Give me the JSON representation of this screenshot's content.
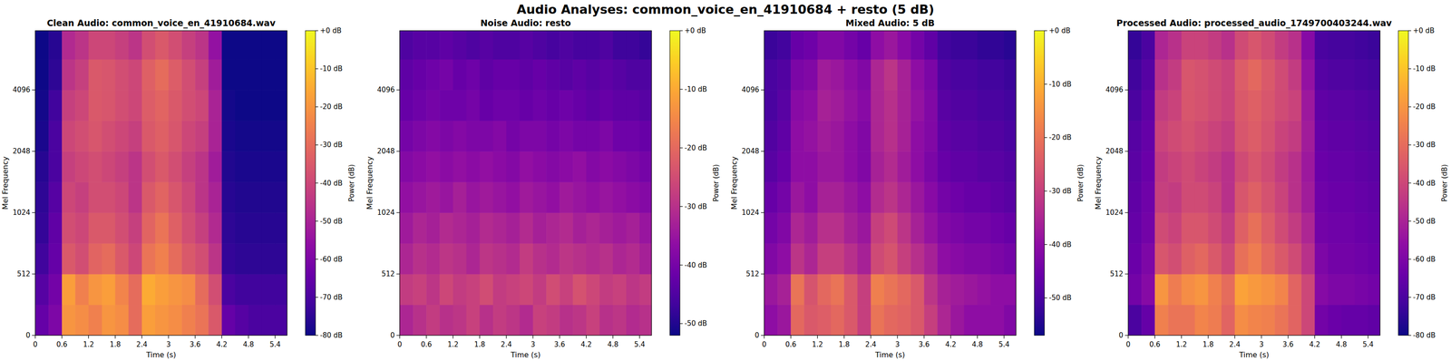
{
  "suptitle": "Audio Analyses: common_voice_en_41910684 + resto (5 dB)",
  "chart_data": [
    {
      "type": "heatmap",
      "title": "Clean Audio: common_voice_en_41910684.wav",
      "x_label": "Time (s)",
      "y_label": "Mel Frequency",
      "xlim": [
        0,
        5.67
      ],
      "xticks": [
        0,
        0.6,
        1.2,
        1.8,
        2.4,
        3,
        3.6,
        4.2,
        4.8,
        5.4
      ],
      "ylim": [
        0,
        8000
      ],
      "yticks": [
        0,
        512,
        1024,
        2048,
        4096
      ],
      "x_bins": [
        0,
        0.3,
        0.6,
        0.9,
        1.2,
        1.5,
        1.8,
        2.1,
        2.4,
        2.7,
        3.0,
        3.3,
        3.6,
        3.9,
        4.2,
        4.5,
        4.8,
        5.1,
        5.4,
        5.67
      ],
      "y_bins": [
        0,
        256,
        512,
        768,
        1024,
        1448,
        2048,
        2896,
        4096,
        5793,
        8000
      ],
      "cells": [
        [
          -65,
          -60,
          -20,
          -22,
          -25,
          -20,
          -22,
          -30,
          -18,
          -20,
          -22,
          -25,
          -28,
          -35,
          -65,
          -68,
          -70,
          -70,
          -70
        ],
        [
          -68,
          -62,
          -18,
          -25,
          -20,
          -18,
          -24,
          -30,
          -15,
          -18,
          -20,
          -22,
          -30,
          -38,
          -70,
          -72,
          -72,
          -72,
          -72
        ],
        [
          -72,
          -65,
          -35,
          -38,
          -32,
          -30,
          -35,
          -40,
          -28,
          -25,
          -30,
          -35,
          -38,
          -45,
          -74,
          -75,
          -75,
          -75,
          -75
        ],
        [
          -74,
          -66,
          -38,
          -40,
          -35,
          -35,
          -38,
          -42,
          -32,
          -28,
          -33,
          -38,
          -42,
          -48,
          -75,
          -76,
          -76,
          -76,
          -76
        ],
        [
          -75,
          -68,
          -40,
          -42,
          -38,
          -38,
          -40,
          -45,
          -35,
          -32,
          -36,
          -40,
          -45,
          -50,
          -76,
          -77,
          -77,
          -77,
          -77
        ],
        [
          -76,
          -70,
          -42,
          -40,
          -38,
          -40,
          -42,
          -45,
          -38,
          -35,
          -38,
          -42,
          -45,
          -52,
          -77,
          -78,
          -78,
          -78,
          -78
        ],
        [
          -78,
          -70,
          -40,
          -38,
          -36,
          -38,
          -40,
          -42,
          -35,
          -33,
          -36,
          -40,
          -42,
          -50,
          -78,
          -79,
          -79,
          -79,
          -79
        ],
        [
          -79,
          -72,
          -42,
          -40,
          -35,
          -36,
          -38,
          -40,
          -34,
          -32,
          -35,
          -38,
          -40,
          -50,
          -79,
          -80,
          -80,
          -80,
          -80
        ],
        [
          -80,
          -75,
          -45,
          -42,
          -35,
          -36,
          -38,
          -40,
          -33,
          -30,
          -34,
          -38,
          -42,
          -52,
          -80,
          -80,
          -80,
          -80,
          -80
        ],
        [
          -80,
          -76,
          -48,
          -45,
          -40,
          -40,
          -42,
          -45,
          -38,
          -35,
          -38,
          -42,
          -45,
          -55,
          -80,
          -80,
          -80,
          -80,
          -80
        ]
      ],
      "colorbar_label": "Power (dB)",
      "colorbar_range": [
        -80,
        0
      ],
      "colorbar_ticks": [
        {
          "value": 0,
          "label": "+0 dB"
        },
        {
          "value": -10,
          "label": "-10 dB"
        },
        {
          "value": -20,
          "label": "-20 dB"
        },
        {
          "value": -30,
          "label": "-30 dB"
        },
        {
          "value": -40,
          "label": "-40 dB"
        },
        {
          "value": -50,
          "label": "-50 dB"
        },
        {
          "value": -60,
          "label": "-60 dB"
        },
        {
          "value": -70,
          "label": "-70 dB"
        },
        {
          "value": -80,
          "label": "-80 dB"
        }
      ]
    },
    {
      "type": "heatmap",
      "title": "Noise Audio: resto",
      "x_label": "Time (s)",
      "y_label": "Mel Frequency",
      "xlim": [
        0,
        5.67
      ],
      "xticks": [
        0,
        0.6,
        1.2,
        1.8,
        2.4,
        3,
        3.6,
        4.2,
        4.8,
        5.4
      ],
      "ylim": [
        0,
        8000
      ],
      "yticks": [
        0,
        512,
        1024,
        2048,
        4096
      ],
      "x_bins": [
        0,
        0.3,
        0.6,
        0.9,
        1.2,
        1.5,
        1.8,
        2.1,
        2.4,
        2.7,
        3.0,
        3.3,
        3.6,
        3.9,
        4.2,
        4.5,
        4.8,
        5.1,
        5.4,
        5.67
      ],
      "y_bins": [
        0,
        256,
        512,
        768,
        1024,
        1448,
        2048,
        2896,
        4096,
        5793,
        8000
      ],
      "cells": [
        [
          -32,
          -30,
          -28,
          -30,
          -29,
          -27,
          -30,
          -28,
          -29,
          -31,
          -27,
          -28,
          -30,
          -29,
          -27,
          -30,
          -29,
          -31,
          -30
        ],
        [
          -28,
          -27,
          -29,
          -26,
          -28,
          -27,
          -25,
          -28,
          -27,
          -26,
          -28,
          -25,
          -27,
          -24,
          -26,
          -28,
          -27,
          -29,
          -28
        ],
        [
          -32,
          -30,
          -31,
          -29,
          -30,
          -32,
          -29,
          -30,
          -31,
          -28,
          -30,
          -31,
          -29,
          -30,
          -31,
          -30,
          -32,
          -31,
          -33
        ],
        [
          -34,
          -32,
          -33,
          -31,
          -32,
          -33,
          -31,
          -32,
          -33,
          -31,
          -33,
          -32,
          -31,
          -33,
          -32,
          -33,
          -34,
          -33,
          -35
        ],
        [
          -36,
          -35,
          -34,
          -35,
          -33,
          -35,
          -34,
          -35,
          -36,
          -34,
          -35,
          -36,
          -34,
          -35,
          -36,
          -35,
          -36,
          -37,
          -38
        ],
        [
          -38,
          -37,
          -36,
          -37,
          -36,
          -37,
          -36,
          -37,
          -38,
          -36,
          -37,
          -38,
          -37,
          -36,
          -38,
          -37,
          -38,
          -39,
          -40
        ],
        [
          -40,
          -39,
          -38,
          -39,
          -38,
          -39,
          -39,
          -38,
          -40,
          -39,
          -39,
          -40,
          -39,
          -40,
          -40,
          -39,
          -41,
          -41,
          -42
        ],
        [
          -42,
          -41,
          -40,
          -41,
          -41,
          -40,
          -42,
          -41,
          -41,
          -42,
          -41,
          -42,
          -41,
          -42,
          -43,
          -42,
          -43,
          -43,
          -44
        ],
        [
          -43,
          -42,
          -41,
          -40,
          -42,
          -41,
          -43,
          -42,
          -42,
          -43,
          -42,
          -43,
          -44,
          -43,
          -44,
          -43,
          -44,
          -45,
          -45
        ],
        [
          -45,
          -44,
          -44,
          -43,
          -44,
          -45,
          -44,
          -45,
          -45,
          -44,
          -45,
          -46,
          -45,
          -46,
          -46,
          -45,
          -47,
          -47,
          -48
        ]
      ],
      "colorbar_label": "Power (dB)",
      "colorbar_range": [
        -52,
        0
      ],
      "colorbar_ticks": [
        {
          "value": 0,
          "label": "+0 dB"
        },
        {
          "value": -10,
          "label": "-10 dB"
        },
        {
          "value": -20,
          "label": "-20 dB"
        },
        {
          "value": -30,
          "label": "-30 dB"
        },
        {
          "value": -40,
          "label": "-40 dB"
        },
        {
          "value": -50,
          "label": "-50 dB"
        }
      ]
    },
    {
      "type": "heatmap",
      "title": "Mixed Audio: 5 dB",
      "x_label": "Time (s)",
      "y_label": "Mel Frequency",
      "xlim": [
        0,
        5.67
      ],
      "xticks": [
        0,
        0.6,
        1.2,
        1.8,
        2.4,
        3,
        3.6,
        4.2,
        4.8,
        5.4
      ],
      "ylim": [
        0,
        8000
      ],
      "yticks": [
        0,
        512,
        1024,
        2048,
        4096
      ],
      "x_bins": [
        0,
        0.3,
        0.6,
        0.9,
        1.2,
        1.5,
        1.8,
        2.1,
        2.4,
        2.7,
        3.0,
        3.3,
        3.6,
        3.9,
        4.2,
        4.5,
        4.8,
        5.1,
        5.4,
        5.67
      ],
      "y_bins": [
        0,
        256,
        512,
        768,
        1024,
        1448,
        2048,
        2896,
        4096,
        5793,
        8000
      ],
      "cells": [
        [
          -40,
          -38,
          -22,
          -25,
          -24,
          -22,
          -25,
          -30,
          -20,
          -22,
          -23,
          -25,
          -30,
          -35,
          -38,
          -40,
          -40,
          -40,
          -42
        ],
        [
          -38,
          -36,
          -20,
          -26,
          -22,
          -20,
          -25,
          -30,
          -18,
          -20,
          -22,
          -25,
          -32,
          -36,
          -37,
          -38,
          -39,
          -40,
          -40
        ],
        [
          -42,
          -40,
          -32,
          -35,
          -30,
          -30,
          -33,
          -36,
          -28,
          -26,
          -30,
          -33,
          -36,
          -40,
          -41,
          -42,
          -42,
          -43,
          -44
        ],
        [
          -44,
          -42,
          -35,
          -37,
          -33,
          -33,
          -36,
          -38,
          -30,
          -28,
          -32,
          -36,
          -39,
          -42,
          -43,
          -44,
          -44,
          -45,
          -46
        ],
        [
          -46,
          -44,
          -38,
          -40,
          -36,
          -36,
          -38,
          -40,
          -34,
          -32,
          -35,
          -38,
          -41,
          -44,
          -45,
          -46,
          -46,
          -47,
          -48
        ],
        [
          -48,
          -46,
          -40,
          -40,
          -38,
          -38,
          -40,
          -42,
          -36,
          -34,
          -37,
          -40,
          -43,
          -46,
          -47,
          -47,
          -48,
          -48,
          -49
        ],
        [
          -49,
          -47,
          -40,
          -39,
          -37,
          -38,
          -40,
          -42,
          -35,
          -33,
          -36,
          -40,
          -42,
          -47,
          -48,
          -48,
          -49,
          -49,
          -50
        ],
        [
          -50,
          -48,
          -41,
          -40,
          -36,
          -37,
          -39,
          -41,
          -35,
          -33,
          -36,
          -39,
          -42,
          -48,
          -49,
          -49,
          -50,
          -50,
          -51
        ],
        [
          -50,
          -49,
          -43,
          -42,
          -37,
          -38,
          -40,
          -42,
          -35,
          -32,
          -36,
          -40,
          -43,
          -49,
          -50,
          -50,
          -51,
          -51,
          -52
        ],
        [
          -52,
          -51,
          -46,
          -45,
          -42,
          -42,
          -44,
          -46,
          -40,
          -38,
          -41,
          -44,
          -47,
          -51,
          -52,
          -52,
          -53,
          -53,
          -54
        ]
      ],
      "colorbar_label": "Power (dB)",
      "colorbar_range": [
        -57,
        0
      ],
      "colorbar_ticks": [
        {
          "value": 0,
          "label": "+0 dB"
        },
        {
          "value": -10,
          "label": "-10 dB"
        },
        {
          "value": -20,
          "label": "-20 dB"
        },
        {
          "value": -30,
          "label": "-30 dB"
        },
        {
          "value": -40,
          "label": "-40 dB"
        },
        {
          "value": -50,
          "label": "-50 dB"
        }
      ]
    },
    {
      "type": "heatmap",
      "title": "Processed Audio: processed_audio_1749700403244.wav",
      "x_label": "Time (s)",
      "y_label": "Mel Frequency",
      "xlim": [
        0,
        5.67
      ],
      "xticks": [
        0,
        0.6,
        1.2,
        1.8,
        2.4,
        3,
        3.6,
        4.2,
        4.8,
        5.4
      ],
      "ylim": [
        0,
        8000
      ],
      "yticks": [
        0,
        512,
        1024,
        2048,
        4096
      ],
      "x_bins": [
        0,
        0.3,
        0.6,
        0.9,
        1.2,
        1.5,
        1.8,
        2.1,
        2.4,
        2.7,
        3.0,
        3.3,
        3.6,
        3.9,
        4.2,
        4.5,
        4.8,
        5.1,
        5.4,
        5.67
      ],
      "y_bins": [
        0,
        256,
        512,
        768,
        1024,
        1448,
        2048,
        2896,
        4096,
        5793,
        8000
      ],
      "cells": [
        [
          -70,
          -65,
          -25,
          -28,
          -28,
          -24,
          -26,
          -32,
          -22,
          -24,
          -25,
          -28,
          -32,
          -40,
          -62,
          -64,
          -65,
          -65,
          -66
        ],
        [
          -62,
          -58,
          -20,
          -26,
          -22,
          -20,
          -25,
          -30,
          -17,
          -19,
          -21,
          -24,
          -32,
          -40,
          -58,
          -60,
          -60,
          -61,
          -62
        ],
        [
          -64,
          -60,
          -36,
          -38,
          -33,
          -31,
          -35,
          -40,
          -29,
          -26,
          -31,
          -35,
          -39,
          -46,
          -60,
          -62,
          -62,
          -63,
          -64
        ],
        [
          -65,
          -62,
          -39,
          -41,
          -36,
          -36,
          -39,
          -43,
          -33,
          -29,
          -34,
          -39,
          -43,
          -49,
          -62,
          -63,
          -63,
          -64,
          -65
        ],
        [
          -66,
          -63,
          -42,
          -43,
          -39,
          -39,
          -41,
          -46,
          -36,
          -33,
          -37,
          -41,
          -46,
          -52,
          -63,
          -64,
          -64,
          -65,
          -66
        ],
        [
          -67,
          -64,
          -43,
          -41,
          -39,
          -41,
          -43,
          -46,
          -39,
          -36,
          -39,
          -43,
          -46,
          -53,
          -64,
          -65,
          -65,
          -66,
          -67
        ],
        [
          -68,
          -65,
          -41,
          -39,
          -37,
          -39,
          -41,
          -43,
          -36,
          -34,
          -37,
          -41,
          -43,
          -52,
          -65,
          -66,
          -66,
          -67,
          -68
        ],
        [
          -70,
          -66,
          -43,
          -41,
          -36,
          -37,
          -39,
          -41,
          -35,
          -33,
          -36,
          -39,
          -41,
          -53,
          -66,
          -67,
          -67,
          -68,
          -69
        ],
        [
          -72,
          -68,
          -46,
          -43,
          -36,
          -37,
          -39,
          -41,
          -34,
          -31,
          -35,
          -39,
          -43,
          -55,
          -68,
          -69,
          -69,
          -70,
          -71
        ],
        [
          -74,
          -70,
          -49,
          -46,
          -41,
          -41,
          -43,
          -46,
          -39,
          -36,
          -39,
          -43,
          -46,
          -58,
          -70,
          -71,
          -71,
          -72,
          -73
        ]
      ],
      "colorbar_label": "Power (dB)",
      "colorbar_range": [
        -80,
        0
      ],
      "colorbar_ticks": [
        {
          "value": 0,
          "label": "+0 dB"
        },
        {
          "value": -10,
          "label": "-10 dB"
        },
        {
          "value": -20,
          "label": "-20 dB"
        },
        {
          "value": -30,
          "label": "-30 dB"
        },
        {
          "value": -40,
          "label": "-40 dB"
        },
        {
          "value": -50,
          "label": "-50 dB"
        },
        {
          "value": -60,
          "label": "-60 dB"
        },
        {
          "value": -70,
          "label": "-70 dB"
        },
        {
          "value": -80,
          "label": "-80 dB"
        }
      ]
    }
  ]
}
